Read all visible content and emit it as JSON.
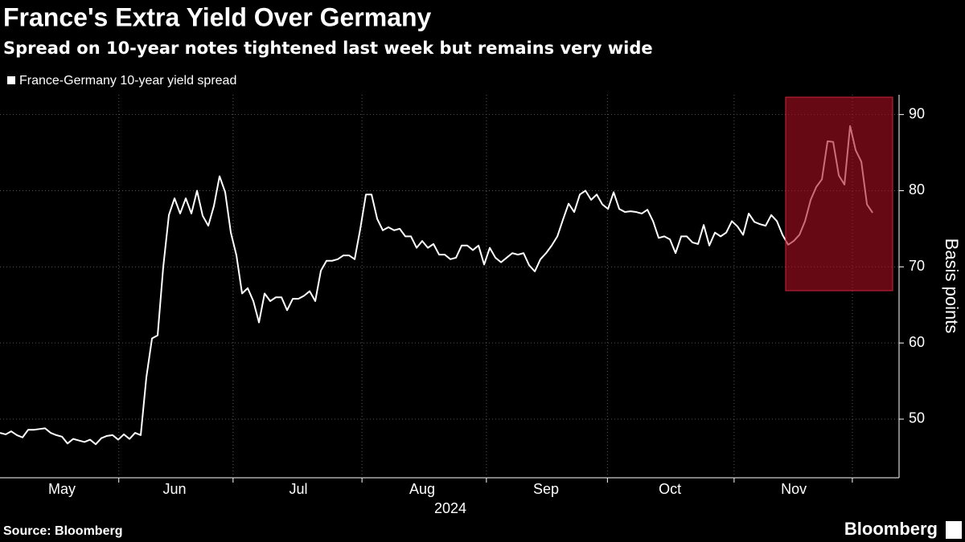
{
  "chart_data": {
    "type": "line",
    "title": "France's Extra Yield Over Germany",
    "subtitle": "Spread on 10-year notes tightened last week but remains very wide",
    "y_label": "Basis points",
    "x_label": "2024",
    "source": "Source: Bloomberg",
    "brand": "Bloomberg",
    "categories": [
      null,
      null,
      null,
      null,
      null,
      null,
      null,
      null,
      null,
      null,
      null,
      "May",
      null,
      null,
      null,
      null,
      null,
      null,
      null,
      null,
      null,
      null,
      null,
      null,
      null,
      null,
      null,
      null,
      null,
      null,
      null,
      "Jun",
      null,
      null,
      null,
      null,
      null,
      null,
      null,
      null,
      null,
      null,
      null,
      null,
      null,
      null,
      null,
      null,
      null,
      null,
      null,
      null,
      null,
      "Jul",
      null,
      null,
      null,
      null,
      null,
      null,
      null,
      null,
      null,
      null,
      null,
      null,
      null,
      null,
      null,
      null,
      null,
      null,
      null,
      null,
      null,
      "Aug",
      null,
      null,
      null,
      null,
      null,
      null,
      null,
      null,
      null,
      null,
      null,
      null,
      null,
      null,
      null,
      null,
      null,
      null,
      null,
      null,
      null,
      "Sep",
      null,
      null,
      null,
      null,
      null,
      null,
      null,
      null,
      null,
      null,
      null,
      null,
      null,
      null,
      null,
      null,
      null,
      null,
      null,
      null,
      null,
      "Oct",
      null,
      null,
      null,
      null,
      null,
      null,
      null,
      null,
      null,
      null,
      null,
      null,
      null,
      null,
      null,
      null,
      null,
      null,
      null,
      null,
      null,
      "Nov",
      null,
      null,
      null,
      null,
      null,
      null,
      null,
      null,
      null,
      null,
      null,
      null,
      null,
      null
    ],
    "series": [
      {
        "name": "France-Germany 10-year yield spread",
        "color": "#ffffff",
        "values": [
          48.2,
          48.0,
          48.4,
          47.9,
          47.6,
          48.6,
          48.6,
          48.7,
          48.8,
          48.2,
          47.9,
          47.7,
          46.8,
          47.4,
          47.2,
          47.0,
          47.3,
          46.7,
          47.5,
          47.8,
          47.9,
          47.3,
          48.0,
          47.4,
          48.2,
          47.9,
          55.5,
          60.6,
          61.0,
          70.0,
          76.8,
          79.0,
          77.0,
          79.0,
          77.0,
          80.0,
          76.7,
          75.4,
          78.0,
          81.9,
          79.8,
          74.5,
          71.5,
          66.5,
          67.2,
          65.5,
          62.7,
          66.5,
          65.5,
          66.0,
          66.0,
          64.3,
          65.8,
          65.8,
          66.2,
          66.8,
          65.5,
          69.5,
          70.8,
          70.8,
          71.0,
          71.5,
          71.5,
          71.0,
          75.0,
          79.5,
          79.5,
          76.3,
          74.8,
          75.2,
          74.8,
          75.0,
          74.0,
          74.0,
          72.5,
          73.4,
          72.5,
          73.0,
          71.6,
          71.6,
          71.0,
          71.2,
          72.8,
          72.8,
          72.2,
          72.8,
          70.3,
          72.5,
          71.2,
          70.6,
          71.2,
          71.8,
          71.6,
          71.8,
          70.2,
          69.4,
          71.0,
          71.8,
          72.8,
          74.0,
          76.2,
          78.3,
          77.2,
          79.5,
          80.0,
          78.8,
          79.5,
          78.2,
          77.6,
          79.8,
          77.6,
          77.2,
          77.3,
          77.2,
          77.0,
          77.5,
          76.0,
          73.8,
          74.0,
          73.6,
          71.8,
          74.0,
          74.0,
          73.2,
          73.0,
          75.5,
          72.8,
          74.5,
          74.0,
          74.5,
          76.0,
          75.3,
          74.2,
          77.0,
          75.9,
          75.6,
          75.4,
          76.8,
          76.0,
          74.2,
          72.9,
          73.4,
          74.2,
          76.0,
          78.8,
          80.5,
          81.5,
          86.5,
          86.4,
          82.0,
          80.8,
          88.5,
          85.3,
          83.8,
          78.2,
          77.1
        ]
      }
    ],
    "xlim": [
      0,
      159.7
    ],
    "xticks": [
      21.1,
      41.4,
      64.3,
      86.4,
      107.9,
      130.4,
      151.4
    ],
    "ylim": [
      42.3,
      92.6
    ],
    "yticks": [
      50,
      60,
      70,
      80,
      90
    ],
    "grid": true
  }
}
